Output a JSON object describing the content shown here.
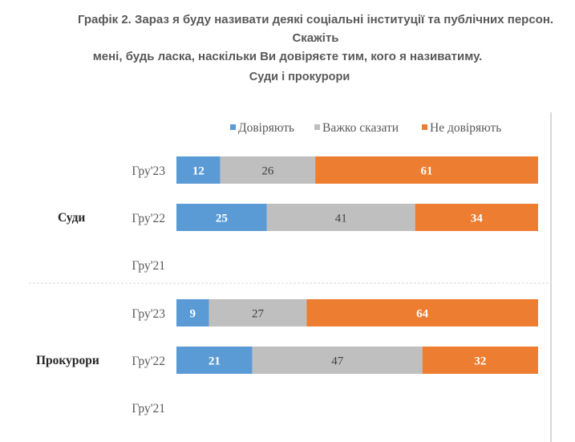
{
  "title_line1": "Графік 2. Зараз я буду називати деякі соціальні інституції та публічних персон. Скажіть",
  "title_line2": "мені, будь ласка, наскільки Ви довіряєте тим, кого я називатиму.",
  "chart_data": {
    "type": "bar",
    "orientation": "horizontal",
    "stacked": true,
    "title": "Суди і прокурори",
    "xlim": [
      0,
      100
    ],
    "legend": [
      "Довіряють",
      "Важко сказати",
      "Не  довіряють"
    ],
    "legend_position": "top",
    "colors": [
      "#5B9BD5",
      "#BFBFBF",
      "#ED7D31"
    ],
    "label_colors": [
      "#ffffff",
      "#404040",
      "#ffffff"
    ],
    "groups": [
      {
        "name": "Суди",
        "rows": [
          {
            "label": "Гру'23",
            "values": [
              12,
              26,
              61
            ]
          },
          {
            "label": "Гру'22",
            "values": [
              25,
              41,
              34
            ]
          },
          {
            "label": "Гру'21",
            "values": null
          }
        ]
      },
      {
        "name": "Прокурори",
        "rows": [
          {
            "label": "Гру'23",
            "values": [
              9,
              27,
              64
            ]
          },
          {
            "label": "Гру'22",
            "values": [
              21,
              47,
              32
            ]
          },
          {
            "label": "Гру'21",
            "values": null
          }
        ]
      }
    ]
  }
}
